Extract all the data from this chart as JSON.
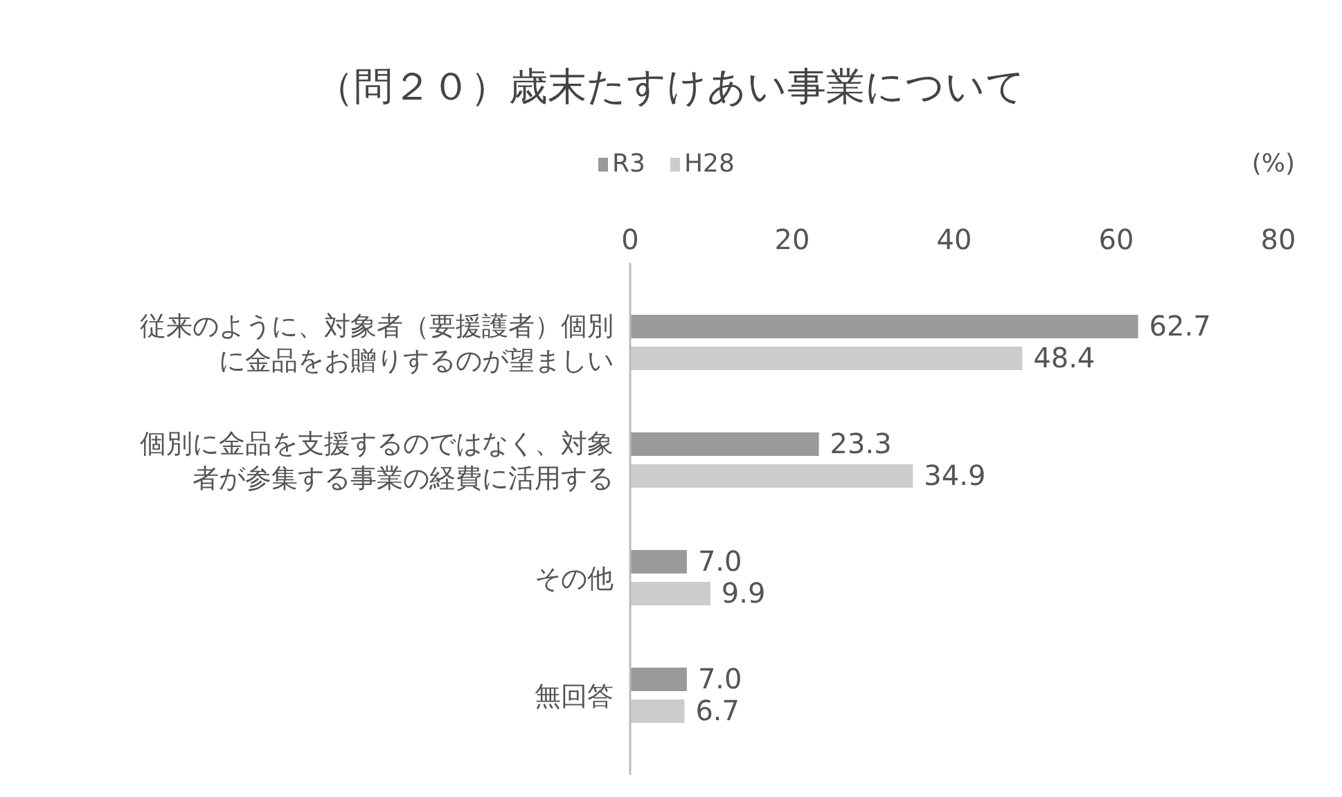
{
  "chart_data": {
    "type": "bar",
    "orientation": "horizontal",
    "title": "（問２０）歳末たすけあい事業について",
    "xlabel": "(%)",
    "categories": [
      "従来のように、対象者（要援護者）個別に金品をお贈りするのが望ましい",
      "個別に金品を支援するのではなく、対象者が参集する事業の経費に活用する",
      "その他",
      "無回答"
    ],
    "series": [
      {
        "name": "R3",
        "color": "#9a9a9a",
        "values": [
          62.7,
          23.3,
          7.0,
          7.0
        ],
        "value_labels": [
          "62.7",
          "23.3",
          "7.0",
          "7.0"
        ]
      },
      {
        "name": "H28",
        "color": "#cccccc",
        "values": [
          48.4,
          34.9,
          9.9,
          6.7
        ],
        "value_labels": [
          "48.4",
          "34.9",
          "9.9",
          "6.7"
        ]
      }
    ],
    "xlim": [
      0,
      80
    ],
    "xticks": [
      0,
      20,
      40,
      60,
      80
    ],
    "legend": "top",
    "grid": false
  }
}
